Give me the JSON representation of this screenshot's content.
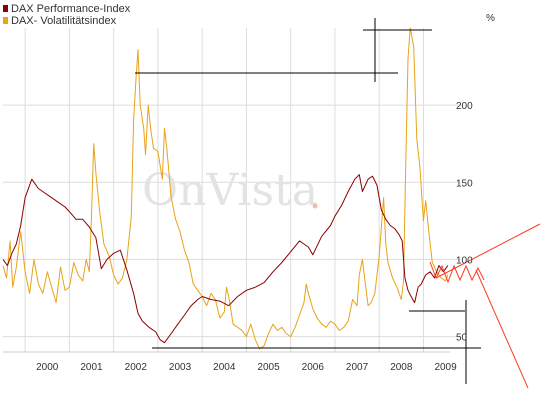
{
  "chart_data": {
    "type": "line",
    "title": "",
    "watermark": "OnVista",
    "y_unit_label": "%",
    "x_axis": {
      "min": 1999.5,
      "max": 2009.6,
      "ticks": [
        "2000",
        "2001",
        "2002",
        "2003",
        "2004",
        "2005",
        "2006",
        "2007",
        "2008",
        "2009"
      ]
    },
    "y_axis": {
      "min": 40,
      "max": 250,
      "ticks": [
        50,
        100,
        150,
        200
      ],
      "position": "right"
    },
    "grid": true,
    "legend_position": "top-left",
    "series": [
      {
        "name": "DAX Performance-Index",
        "color": "#8b0000",
        "points": [
          [
            1999.5,
            100
          ],
          [
            1999.6,
            96
          ],
          [
            1999.7,
            104
          ],
          [
            1999.8,
            110
          ],
          [
            1999.9,
            122
          ],
          [
            2000.0,
            140
          ],
          [
            2000.15,
            152
          ],
          [
            2000.3,
            146
          ],
          [
            2000.45,
            143
          ],
          [
            2000.6,
            140
          ],
          [
            2000.75,
            137
          ],
          [
            2000.9,
            134
          ],
          [
            2001.0,
            131
          ],
          [
            2001.15,
            126
          ],
          [
            2001.3,
            126
          ],
          [
            2001.45,
            121
          ],
          [
            2001.6,
            114
          ],
          [
            2001.72,
            94
          ],
          [
            2001.85,
            100
          ],
          [
            2002.0,
            104
          ],
          [
            2002.15,
            106
          ],
          [
            2002.3,
            93
          ],
          [
            2002.45,
            78
          ],
          [
            2002.55,
            65
          ],
          [
            2002.65,
            60
          ],
          [
            2002.8,
            56
          ],
          [
            2002.95,
            53
          ],
          [
            2003.05,
            48
          ],
          [
            2003.15,
            46
          ],
          [
            2003.3,
            52
          ],
          [
            2003.45,
            58
          ],
          [
            2003.6,
            64
          ],
          [
            2003.75,
            70
          ],
          [
            2003.9,
            74
          ],
          [
            2004.0,
            76
          ],
          [
            2004.2,
            74
          ],
          [
            2004.4,
            73
          ],
          [
            2004.6,
            70
          ],
          [
            2004.8,
            76
          ],
          [
            2005.0,
            80
          ],
          [
            2005.2,
            82
          ],
          [
            2005.4,
            85
          ],
          [
            2005.6,
            92
          ],
          [
            2005.8,
            98
          ],
          [
            2006.0,
            105
          ],
          [
            2006.2,
            112
          ],
          [
            2006.4,
            108
          ],
          [
            2006.5,
            103
          ],
          [
            2006.7,
            115
          ],
          [
            2006.9,
            122
          ],
          [
            2007.0,
            128
          ],
          [
            2007.15,
            135
          ],
          [
            2007.3,
            144
          ],
          [
            2007.45,
            152
          ],
          [
            2007.55,
            155
          ],
          [
            2007.62,
            144
          ],
          [
            2007.75,
            152
          ],
          [
            2007.85,
            154
          ],
          [
            2007.95,
            148
          ],
          [
            2008.05,
            132
          ],
          [
            2008.15,
            126
          ],
          [
            2008.25,
            122
          ],
          [
            2008.35,
            120
          ],
          [
            2008.45,
            116
          ],
          [
            2008.52,
            112
          ],
          [
            2008.58,
            88
          ],
          [
            2008.65,
            80
          ],
          [
            2008.72,
            76
          ],
          [
            2008.8,
            72
          ],
          [
            2008.88,
            82
          ],
          [
            2008.95,
            84
          ],
          [
            2009.05,
            90
          ],
          [
            2009.15,
            92
          ],
          [
            2009.25,
            88
          ],
          [
            2009.35,
            96
          ],
          [
            2009.45,
            92
          ],
          [
            2009.55,
            96
          ]
        ]
      },
      {
        "name": "DAX- Volatilitätsindex",
        "color": "#e8a317",
        "points": [
          [
            1999.5,
            96
          ],
          [
            1999.58,
            88
          ],
          [
            1999.66,
            112
          ],
          [
            1999.72,
            82
          ],
          [
            1999.8,
            95
          ],
          [
            1999.9,
            118
          ],
          [
            2000.0,
            92
          ],
          [
            2000.1,
            78
          ],
          [
            2000.2,
            100
          ],
          [
            2000.3,
            84
          ],
          [
            2000.4,
            78
          ],
          [
            2000.5,
            92
          ],
          [
            2000.6,
            82
          ],
          [
            2000.7,
            72
          ],
          [
            2000.8,
            95
          ],
          [
            2000.9,
            80
          ],
          [
            2001.0,
            82
          ],
          [
            2001.1,
            98
          ],
          [
            2001.2,
            90
          ],
          [
            2001.3,
            86
          ],
          [
            2001.38,
            100
          ],
          [
            2001.45,
            92
          ],
          [
            2001.5,
            128
          ],
          [
            2001.55,
            175
          ],
          [
            2001.6,
            156
          ],
          [
            2001.68,
            132
          ],
          [
            2001.78,
            110
          ],
          [
            2001.9,
            102
          ],
          [
            2002.0,
            90
          ],
          [
            2002.1,
            84
          ],
          [
            2002.2,
            88
          ],
          [
            2002.3,
            100
          ],
          [
            2002.4,
            128
          ],
          [
            2002.45,
            190
          ],
          [
            2002.5,
            215
          ],
          [
            2002.55,
            236
          ],
          [
            2002.6,
            200
          ],
          [
            2002.68,
            185
          ],
          [
            2002.72,
            168
          ],
          [
            2002.78,
            200
          ],
          [
            2002.84,
            184
          ],
          [
            2002.9,
            172
          ],
          [
            2003.0,
            170
          ],
          [
            2003.1,
            152
          ],
          [
            2003.15,
            185
          ],
          [
            2003.2,
            172
          ],
          [
            2003.3,
            140
          ],
          [
            2003.4,
            126
          ],
          [
            2003.5,
            118
          ],
          [
            2003.6,
            106
          ],
          [
            2003.7,
            98
          ],
          [
            2003.8,
            84
          ],
          [
            2003.9,
            80
          ],
          [
            2004.0,
            76
          ],
          [
            2004.1,
            70
          ],
          [
            2004.2,
            78
          ],
          [
            2004.3,
            74
          ],
          [
            2004.4,
            62
          ],
          [
            2004.5,
            66
          ],
          [
            2004.55,
            82
          ],
          [
            2004.6,
            76
          ],
          [
            2004.7,
            58
          ],
          [
            2004.8,
            56
          ],
          [
            2004.9,
            54
          ],
          [
            2005.0,
            50
          ],
          [
            2005.1,
            58
          ],
          [
            2005.2,
            48
          ],
          [
            2005.3,
            42
          ],
          [
            2005.4,
            44
          ],
          [
            2005.5,
            52
          ],
          [
            2005.6,
            58
          ],
          [
            2005.7,
            54
          ],
          [
            2005.8,
            56
          ],
          [
            2005.9,
            52
          ],
          [
            2006.0,
            50
          ],
          [
            2006.1,
            56
          ],
          [
            2006.2,
            64
          ],
          [
            2006.3,
            72
          ],
          [
            2006.35,
            84
          ],
          [
            2006.4,
            78
          ],
          [
            2006.5,
            68
          ],
          [
            2006.6,
            62
          ],
          [
            2006.7,
            58
          ],
          [
            2006.8,
            56
          ],
          [
            2006.9,
            60
          ],
          [
            2007.0,
            58
          ],
          [
            2007.1,
            54
          ],
          [
            2007.2,
            56
          ],
          [
            2007.3,
            60
          ],
          [
            2007.4,
            74
          ],
          [
            2007.5,
            70
          ],
          [
            2007.55,
            90
          ],
          [
            2007.62,
            100
          ],
          [
            2007.68,
            86
          ],
          [
            2007.75,
            70
          ],
          [
            2007.82,
            72
          ],
          [
            2007.9,
            78
          ],
          [
            2008.0,
            102
          ],
          [
            2008.1,
            140
          ],
          [
            2008.15,
            110
          ],
          [
            2008.2,
            98
          ],
          [
            2008.3,
            88
          ],
          [
            2008.4,
            82
          ],
          [
            2008.5,
            74
          ],
          [
            2008.55,
            86
          ],
          [
            2008.6,
            160
          ],
          [
            2008.65,
            230
          ],
          [
            2008.7,
            250
          ],
          [
            2008.78,
            238
          ],
          [
            2008.85,
            178
          ],
          [
            2008.92,
            160
          ],
          [
            2009.0,
            125
          ],
          [
            2009.05,
            138
          ],
          [
            2009.12,
            118
          ],
          [
            2009.2,
            98
          ],
          [
            2009.3,
            92
          ],
          [
            2009.4,
            88
          ],
          [
            2009.5,
            86
          ],
          [
            2009.55,
            90
          ]
        ]
      }
    ]
  },
  "annotations": {
    "color_black": "#000000",
    "color_red": "#ff3b1f"
  }
}
